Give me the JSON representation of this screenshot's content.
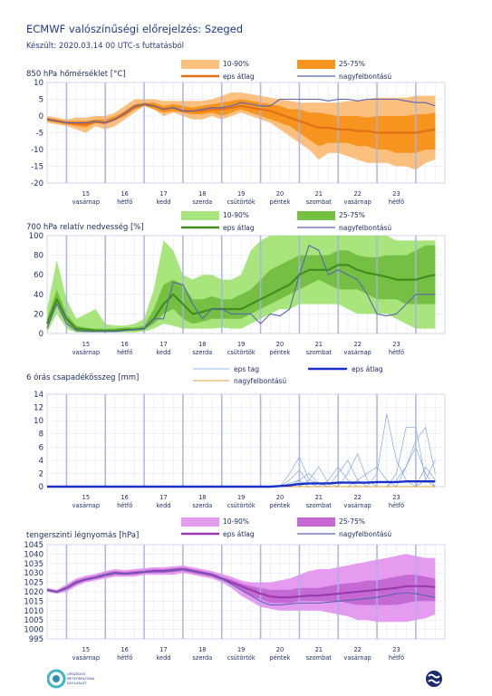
{
  "header": {
    "title": "ECMWF valószínűségi előrejelzés: Szeged",
    "subtitle": "Készült: 2020.03.14 00 UTC-s futtatásból"
  },
  "days": [
    {
      "num": "15",
      "name": "vasárnap"
    },
    {
      "num": "16",
      "name": "hétfő"
    },
    {
      "num": "17",
      "name": "kedd"
    },
    {
      "num": "18",
      "name": "szerda"
    },
    {
      "num": "19",
      "name": "csütörtök"
    },
    {
      "num": "20",
      "name": "péntek"
    },
    {
      "num": "21",
      "name": "szombat"
    },
    {
      "num": "22",
      "name": "vasárnap"
    },
    {
      "num": "23",
      "name": "hétfő"
    }
  ],
  "legend": {
    "p1090": "10-90%",
    "p2575": "25-75%",
    "eps_mean": "eps átlag",
    "hires": "nagyfelbontású",
    "eps_member": "eps tag"
  },
  "logo_left_text": [
    "ORSZÁGOS",
    "METEOROLÓGIAI",
    "SZOLGÁLAT"
  ],
  "colors": {
    "temp": {
      "band1": "#fbbf7e",
      "band2": "#f7941d",
      "mean": "#e2701b"
    },
    "rh": {
      "band1": "#a9e57d",
      "band2": "#75c043",
      "mean": "#3f8f1f"
    },
    "pres": {
      "band1": "#e59cf0",
      "band2": "#c56ad4",
      "mean": "#9c3bb0"
    },
    "hires": "#5b63b2",
    "member": "#6f9be0",
    "precip_mean": "#1830c8",
    "precip_hires": "#e0a040"
  },
  "chart_data": [
    {
      "type": "area",
      "title": "850 hPa hőmérséklet [°C]",
      "ylim": [
        -20,
        10
      ],
      "yticks": [
        10,
        5,
        0,
        -5,
        -10,
        -15,
        -20
      ],
      "x_hours": [
        0,
        6,
        12,
        18,
        24,
        30,
        36,
        42,
        48,
        54,
        60,
        66,
        72,
        78,
        84,
        90,
        96,
        102,
        108,
        114,
        120,
        126,
        132,
        138,
        144,
        150,
        156,
        162,
        168,
        174,
        180,
        186,
        192,
        198,
        204,
        210,
        216,
        222,
        228,
        234,
        240
      ],
      "p10": [
        -2,
        -2.5,
        -3,
        -4,
        -5,
        -3,
        -4,
        -3,
        -1,
        1,
        3,
        2,
        0,
        1,
        0,
        -1,
        -1,
        0,
        -1,
        0,
        1,
        0,
        -1,
        -2,
        -4,
        -6,
        -8,
        -10,
        -13,
        -11,
        -11,
        -12,
        -13,
        -14,
        -14,
        -14,
        -15,
        -15,
        -16,
        -14,
        -13
      ],
      "p25": [
        -1.5,
        -2,
        -2.5,
        -3,
        -3.5,
        -2,
        -2.5,
        -1,
        0,
        2,
        3,
        2,
        1,
        1.5,
        1,
        0.5,
        0.5,
        1,
        0,
        1,
        2,
        1,
        0,
        -1,
        -2,
        -3,
        -5,
        -7,
        -9,
        -8,
        -8,
        -8,
        -9,
        -9,
        -10,
        -10,
        -11,
        -11,
        -11,
        -10,
        -10
      ],
      "mean": [
        -1,
        -1.5,
        -2,
        -2.3,
        -2.5,
        -1.8,
        -2,
        -1,
        0.5,
        2.5,
        3.5,
        3,
        2,
        2.5,
        1.5,
        1.5,
        1.5,
        2,
        2,
        2.5,
        3,
        2.5,
        2,
        1.5,
        0.5,
        -0.5,
        -1.5,
        -2.5,
        -3.5,
        -3.5,
        -4,
        -4,
        -4.5,
        -4.5,
        -5,
        -5,
        -5,
        -5,
        -5,
        -4.5,
        -4
      ],
      "p75": [
        -0.5,
        -1,
        -1.5,
        -1.5,
        -1.5,
        -1,
        -1,
        0,
        1.5,
        3.5,
        4,
        4,
        3,
        3.5,
        3,
        2.5,
        3,
        3.5,
        4,
        4.5,
        5,
        4.5,
        4,
        3.5,
        3,
        2,
        2,
        1,
        1,
        0.5,
        0,
        0,
        0,
        -0.5,
        0,
        0,
        0,
        0,
        0.5,
        0.5,
        1
      ],
      "p90": [
        0,
        -0.5,
        -1,
        -0.5,
        -0.5,
        0,
        0,
        1,
        3,
        5,
        5,
        5,
        4.5,
        4.5,
        4.5,
        4.5,
        4.5,
        5,
        6,
        7,
        7,
        6.5,
        6,
        5.5,
        5,
        4.5,
        4,
        4,
        4,
        4,
        4,
        4.5,
        4.5,
        5,
        5.5,
        5.5,
        5.5,
        5.5,
        6,
        6,
        6
      ],
      "hires": [
        -1,
        -1.5,
        -2,
        -2,
        -2,
        -1.5,
        -2,
        -1,
        1,
        3,
        3.5,
        3,
        2,
        2.5,
        1.5,
        1.5,
        2,
        2.5,
        2.5,
        3,
        4,
        3.5,
        3,
        3,
        5,
        5,
        5,
        5,
        5,
        4.5,
        5,
        5,
        4.5,
        5,
        5,
        5,
        5,
        4.5,
        4,
        4,
        3
      ]
    },
    {
      "type": "area",
      "title": "700 hPa relatív nedvesség [%]",
      "ylim": [
        0,
        100
      ],
      "yticks": [
        100,
        80,
        60,
        40,
        20,
        0
      ],
      "x_hours": [
        0,
        6,
        12,
        18,
        24,
        30,
        36,
        42,
        48,
        54,
        60,
        66,
        72,
        78,
        84,
        90,
        96,
        102,
        108,
        114,
        120,
        126,
        132,
        138,
        144,
        150,
        156,
        162,
        168,
        174,
        180,
        186,
        192,
        198,
        204,
        210,
        216,
        222,
        228,
        234,
        240
      ],
      "p10": [
        1,
        20,
        5,
        1,
        1,
        1,
        1,
        1,
        1,
        1,
        2,
        5,
        10,
        8,
        5,
        5,
        5,
        5,
        6,
        5,
        5,
        10,
        15,
        20,
        25,
        25,
        30,
        30,
        30,
        30,
        30,
        25,
        20,
        20,
        20,
        20,
        15,
        10,
        5,
        5,
        5
      ],
      "p25": [
        5,
        30,
        10,
        3,
        2,
        2,
        2,
        2,
        3,
        3,
        4,
        10,
        20,
        25,
        15,
        10,
        12,
        15,
        15,
        15,
        15,
        20,
        25,
        30,
        35,
        40,
        45,
        50,
        55,
        50,
        45,
        45,
        45,
        40,
        35,
        35,
        35,
        30,
        30,
        30,
        30
      ],
      "mean": [
        10,
        35,
        15,
        5,
        4,
        3,
        3,
        3,
        4,
        4,
        5,
        15,
        30,
        40,
        30,
        20,
        22,
        25,
        25,
        25,
        25,
        30,
        35,
        40,
        45,
        50,
        60,
        65,
        65,
        65,
        70,
        70,
        65,
        62,
        60,
        58,
        55,
        55,
        55,
        58,
        60
      ],
      "p75": [
        15,
        45,
        20,
        8,
        6,
        5,
        5,
        5,
        6,
        6,
        8,
        25,
        50,
        55,
        50,
        35,
        35,
        38,
        35,
        35,
        40,
        45,
        55,
        65,
        70,
        75,
        80,
        80,
        80,
        80,
        85,
        85,
        80,
        78,
        78,
        80,
        80,
        80,
        85,
        90,
        90
      ],
      "p90": [
        25,
        75,
        35,
        15,
        20,
        25,
        10,
        8,
        8,
        10,
        15,
        45,
        95,
        85,
        60,
        55,
        60,
        60,
        55,
        55,
        60,
        85,
        95,
        100,
        100,
        100,
        100,
        100,
        100,
        100,
        100,
        100,
        100,
        100,
        100,
        100,
        95,
        95,
        95,
        95,
        95
      ],
      "hires": [
        5,
        30,
        10,
        3,
        2,
        2,
        2,
        2,
        3,
        4,
        5,
        15,
        15,
        52,
        50,
        30,
        15,
        25,
        25,
        20,
        20,
        20,
        10,
        20,
        18,
        25,
        60,
        90,
        85,
        60,
        65,
        60,
        55,
        40,
        20,
        18,
        20,
        30,
        40,
        40,
        40
      ]
    },
    {
      "type": "line",
      "title": "6 órás csapadékösszeg [mm]",
      "ylim": [
        0,
        14
      ],
      "yticks": [
        14,
        12,
        10,
        8,
        6,
        4,
        2,
        0
      ],
      "x_hours": [
        0,
        6,
        12,
        18,
        24,
        30,
        36,
        42,
        48,
        54,
        60,
        66,
        72,
        78,
        84,
        90,
        96,
        102,
        108,
        114,
        120,
        126,
        132,
        138,
        144,
        150,
        156,
        162,
        168,
        174,
        180,
        186,
        192,
        198,
        204,
        210,
        216,
        222,
        228,
        234,
        240
      ],
      "mean": [
        0,
        0,
        0,
        0,
        0,
        0,
        0,
        0,
        0,
        0,
        0,
        0,
        0,
        0,
        0,
        0,
        0,
        0,
        0,
        0,
        0,
        0,
        0,
        0,
        0.1,
        0.2,
        0.4,
        0.5,
        0.5,
        0.5,
        0.6,
        0.6,
        0.6,
        0.6,
        0.7,
        0.7,
        0.7,
        0.8,
        0.8,
        0.8,
        0.8
      ],
      "hires": [
        0,
        0,
        0,
        0,
        0,
        0,
        0,
        0,
        0,
        0,
        0,
        0,
        0,
        0,
        0,
        0,
        0,
        0,
        0,
        0,
        0,
        0,
        0,
        0,
        0,
        0,
        0,
        0,
        0,
        0,
        0,
        0,
        0,
        0,
        0,
        0,
        0,
        0,
        0,
        0,
        0
      ],
      "members": [
        [
          0,
          0,
          0,
          0,
          0,
          0,
          0,
          0,
          0,
          0,
          0,
          0,
          0,
          0,
          0,
          0,
          0,
          0,
          0,
          0,
          0,
          0,
          0,
          0,
          0,
          2,
          4.5,
          1,
          0.5,
          0,
          0,
          0,
          0,
          0,
          0,
          0,
          0,
          0,
          0,
          0,
          0
        ],
        [
          0,
          0,
          0,
          0,
          0,
          0,
          0,
          0,
          0,
          0,
          0,
          0,
          0,
          0,
          0,
          0,
          0,
          0,
          0,
          0,
          0,
          0,
          0,
          0,
          0,
          0,
          0,
          0,
          0,
          1,
          3,
          1,
          0,
          0,
          2,
          11,
          4,
          1,
          0,
          0,
          0
        ],
        [
          0,
          0,
          0,
          0,
          0,
          0,
          0,
          0,
          0,
          0,
          0,
          0,
          0,
          0,
          0,
          0,
          0,
          0,
          0,
          0,
          0,
          0,
          0,
          0,
          0,
          0,
          0,
          1,
          3,
          0.5,
          0,
          0,
          0,
          0,
          0,
          0,
          2,
          9,
          9,
          1,
          0
        ],
        [
          0,
          0,
          0,
          0,
          0,
          0,
          0,
          0,
          0,
          0,
          0,
          0,
          0,
          0,
          0,
          0,
          0,
          0,
          0,
          0,
          0,
          0,
          0,
          0,
          0,
          0,
          1,
          2,
          0.5,
          0,
          0,
          0,
          0,
          0,
          0,
          0,
          1,
          3,
          7,
          9,
          2
        ],
        [
          0,
          0,
          0,
          0,
          0,
          0,
          0,
          0,
          0,
          0,
          0,
          0,
          0,
          0,
          0,
          0,
          0,
          0,
          0,
          0,
          0,
          0,
          0,
          0,
          0,
          1,
          2.5,
          0.5,
          0,
          0,
          2,
          4,
          1,
          0,
          0,
          0,
          0,
          3,
          6,
          2,
          0
        ],
        [
          0,
          0,
          0,
          0,
          0,
          0,
          0,
          0,
          0,
          0,
          0,
          0,
          0,
          0,
          0,
          0,
          0,
          0,
          0,
          0,
          0,
          0,
          0,
          0,
          0,
          0.5,
          1,
          0,
          0,
          0,
          0,
          0,
          1,
          2,
          3,
          1,
          0,
          0,
          0,
          1,
          4
        ],
        [
          0,
          0,
          0,
          0,
          0,
          0,
          0,
          0,
          0,
          0,
          0,
          0,
          0,
          0,
          0,
          0,
          0,
          0,
          0,
          0,
          0,
          0,
          0,
          0,
          0,
          0,
          0,
          0,
          0,
          0,
          0,
          2,
          5,
          1,
          0,
          0,
          0,
          0,
          0,
          3,
          1
        ]
      ]
    },
    {
      "type": "area",
      "title": "tengerszinti légnyomás [hPa]",
      "ylim": [
        995,
        1045
      ],
      "yticks": [
        1045,
        1040,
        1035,
        1030,
        1025,
        1020,
        1015,
        1010,
        1005,
        1000,
        995
      ],
      "x_hours": [
        0,
        6,
        12,
        18,
        24,
        30,
        36,
        42,
        48,
        54,
        60,
        66,
        72,
        78,
        84,
        90,
        96,
        102,
        108,
        114,
        120,
        126,
        132,
        138,
        144,
        150,
        156,
        162,
        168,
        174,
        180,
        186,
        192,
        198,
        204,
        210,
        216,
        222,
        228,
        234,
        240
      ],
      "p10": [
        1020,
        1019,
        1020,
        1023,
        1025,
        1026,
        1027,
        1028,
        1028,
        1028,
        1029,
        1029,
        1029,
        1029,
        1030,
        1029,
        1028,
        1027,
        1025,
        1022,
        1018,
        1015,
        1012,
        1011,
        1010,
        1010,
        1010,
        1010,
        1010,
        1009,
        1008,
        1007,
        1005,
        1005,
        1004,
        1004,
        1004,
        1004,
        1005,
        1006,
        1008
      ],
      "p25": [
        1020.5,
        1019.5,
        1021,
        1024,
        1026,
        1027,
        1028,
        1029,
        1029,
        1029,
        1030,
        1030,
        1030,
        1030.5,
        1031,
        1030,
        1029,
        1028,
        1026,
        1024,
        1021,
        1018,
        1016,
        1014,
        1014,
        1014,
        1015,
        1015,
        1015,
        1015,
        1015,
        1014,
        1013,
        1013,
        1013,
        1013,
        1013,
        1014,
        1015,
        1015,
        1015
      ],
      "mean": [
        1021,
        1020,
        1022,
        1025,
        1026.5,
        1027.5,
        1029,
        1030,
        1029.5,
        1030,
        1030.5,
        1031,
        1031,
        1031.5,
        1032,
        1031,
        1030,
        1029,
        1027,
        1025,
        1023,
        1021,
        1019,
        1017.5,
        1017,
        1017,
        1017.5,
        1018,
        1018,
        1018.5,
        1019,
        1019.5,
        1020,
        1020.5,
        1021,
        1021.5,
        1022,
        1023,
        1023,
        1023,
        1022.5
      ],
      "p75": [
        1021.5,
        1020.5,
        1023,
        1026,
        1027.5,
        1028.5,
        1030,
        1031,
        1030.5,
        1031,
        1031.5,
        1032,
        1032,
        1032.5,
        1033,
        1032,
        1031,
        1030,
        1028,
        1026.5,
        1024.5,
        1023,
        1022,
        1021,
        1021,
        1021,
        1022,
        1022,
        1022,
        1023,
        1024,
        1024.5,
        1025,
        1026,
        1026,
        1027,
        1028,
        1029,
        1029,
        1028,
        1027
      ],
      "p90": [
        1022,
        1021,
        1024,
        1027,
        1028.5,
        1029.5,
        1031,
        1032,
        1031.5,
        1032,
        1032.5,
        1033,
        1033,
        1033.5,
        1034,
        1033,
        1032,
        1031,
        1029.5,
        1028,
        1026,
        1025,
        1025,
        1025,
        1026,
        1027,
        1029,
        1031,
        1032,
        1032,
        1033,
        1034,
        1035,
        1036,
        1037,
        1038,
        1039,
        1040,
        1039,
        1038,
        1038
      ],
      "hires": [
        1021,
        1020,
        1022,
        1025,
        1026.5,
        1027.5,
        1029,
        1030,
        1029.5,
        1030,
        1030.5,
        1031,
        1031,
        1031.5,
        1032,
        1031,
        1030,
        1029,
        1027,
        1024,
        1021,
        1018,
        1015,
        1013,
        1013,
        1013.5,
        1014,
        1014,
        1014,
        1014.5,
        1015,
        1015.5,
        1016,
        1016.5,
        1017,
        1018,
        1019,
        1019.5,
        1019,
        1018,
        1017
      ]
    }
  ]
}
